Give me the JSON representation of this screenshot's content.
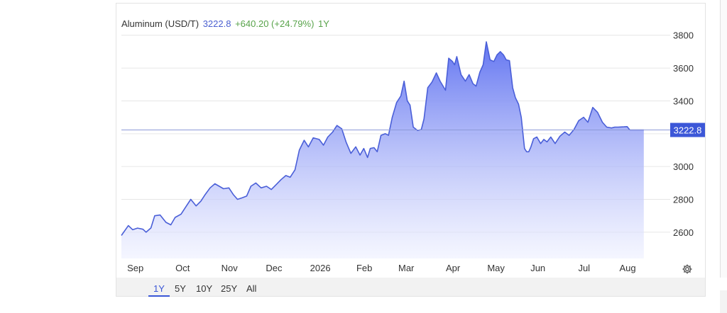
{
  "legend": {
    "name": "Aluminum (USD/T)",
    "last": "3222.8",
    "change": "+640.20 (+24.79%)",
    "range": "1Y"
  },
  "colors": {
    "line": "#4a5fd8",
    "area_top": "#5b6ef0",
    "area_bottom": "#eef0ff",
    "current_label_bg": "#3c57d8",
    "positive": "#58a34a"
  },
  "range_buttons": [
    {
      "label": "1Y",
      "active": true
    },
    {
      "label": "5Y",
      "active": false
    },
    {
      "label": "10Y",
      "active": false
    },
    {
      "label": "25Y",
      "active": false
    },
    {
      "label": "All",
      "active": false
    }
  ],
  "settings_icon": "gear-icon",
  "chart_data": {
    "type": "area",
    "title": "",
    "xlabel": "",
    "ylabel": "",
    "ylim": [
      2440,
      3980
    ],
    "y_ticks": [
      2600,
      2800,
      3000,
      3200,
      3400,
      3600,
      3800
    ],
    "y_tick_labels": [
      "2600",
      "2800",
      "3000",
      "",
      "3400",
      "3600",
      "3800"
    ],
    "y_axis_position": "right",
    "grid": true,
    "x_ticks": [
      {
        "label": "Sep",
        "t": 0.026
      },
      {
        "label": "Oct",
        "t": 0.114
      },
      {
        "label": "Nov",
        "t": 0.201
      },
      {
        "label": "Dec",
        "t": 0.284
      },
      {
        "label": "2026",
        "t": 0.37
      },
      {
        "label": "Feb",
        "t": 0.452
      },
      {
        "label": "Mar",
        "t": 0.53
      },
      {
        "label": "Apr",
        "t": 0.617
      },
      {
        "label": "May",
        "t": 0.697
      },
      {
        "label": "Jun",
        "t": 0.775
      },
      {
        "label": "Jul",
        "t": 0.861
      },
      {
        "label": "Aug",
        "t": 0.942
      }
    ],
    "current_value": 3222.8,
    "current_value_label": "3222.8",
    "series": [
      {
        "t": [
          0,
          0.013,
          0.021,
          0.03,
          0.04,
          0.046,
          0.055,
          0.062,
          0.072,
          0.083,
          0.092,
          0.1,
          0.111,
          0.119,
          0.129,
          0.139,
          0.148,
          0.156,
          0.165,
          0.174,
          0.182,
          0.19,
          0.2,
          0.208,
          0.216,
          0.225,
          0.233,
          0.241,
          0.25,
          0.26,
          0.27,
          0.279,
          0.288,
          0.297,
          0.306,
          0.314,
          0.323,
          0.331,
          0.34,
          0.348,
          0.357,
          0.368,
          0.376,
          0.384,
          0.393,
          0.401,
          0.41,
          0.418,
          0.427,
          0.436,
          0.444,
          0.451,
          0.458,
          0.463,
          0.47,
          0.476,
          0.483,
          0.491,
          0.497,
          0.504,
          0.512,
          0.52,
          0.526,
          0.532,
          0.537,
          0.543,
          0.551,
          0.558,
          0.563,
          0.57,
          0.578,
          0.586,
          0.593,
          0.603,
          0.609,
          0.616,
          0.62,
          0.624,
          0.632,
          0.64,
          0.647,
          0.654,
          0.66,
          0.667,
          0.673,
          0.679,
          0.686,
          0.693,
          0.699,
          0.705,
          0.711,
          0.716,
          0.722,
          0.728,
          0.733,
          0.739,
          0.744,
          0.75,
          0.754,
          0.758,
          0.762,
          0.767,
          0.773,
          0.78,
          0.786,
          0.792,
          0.799,
          0.807,
          0.816,
          0.825,
          0.833,
          0.842,
          0.851,
          0.86,
          0.868,
          0.877,
          0.886,
          0.895,
          0.903,
          0.912,
          0.918,
          0.924,
          0.929,
          0.935,
          0.941,
          0.946,
          0.952,
          0.958,
          0.963,
          0.969,
          0.972
        ],
        "values": [
          2580,
          2640,
          2615,
          2625,
          2618,
          2600,
          2626,
          2700,
          2705,
          2660,
          2645,
          2690,
          2710,
          2750,
          2800,
          2760,
          2790,
          2830,
          2870,
          2895,
          2880,
          2865,
          2870,
          2830,
          2800,
          2810,
          2820,
          2880,
          2900,
          2870,
          2880,
          2860,
          2890,
          2920,
          2945,
          2935,
          2980,
          3100,
          3160,
          3120,
          3175,
          3165,
          3130,
          3180,
          3210,
          3250,
          3230,
          3150,
          3080,
          3120,
          3070,
          3110,
          3055,
          3110,
          3115,
          3090,
          3190,
          3200,
          3190,
          3300,
          3390,
          3430,
          3520,
          3400,
          3375,
          3240,
          3220,
          3225,
          3290,
          3480,
          3515,
          3570,
          3520,
          3465,
          3660,
          3640,
          3620,
          3670,
          3560,
          3520,
          3560,
          3505,
          3490,
          3575,
          3620,
          3760,
          3650,
          3640,
          3680,
          3700,
          3680,
          3650,
          3645,
          3480,
          3420,
          3380,
          3300,
          3110,
          3090,
          3090,
          3120,
          3170,
          3180,
          3140,
          3165,
          3150,
          3180,
          3140,
          3185,
          3210,
          3190,
          3225,
          3280,
          3300,
          3270,
          3360,
          3330,
          3270,
          3240,
          3235,
          3240,
          3240,
          3241,
          3242,
          3243,
          3223,
          3223,
          3223,
          3223,
          3223,
          3223
        ]
      }
    ]
  }
}
